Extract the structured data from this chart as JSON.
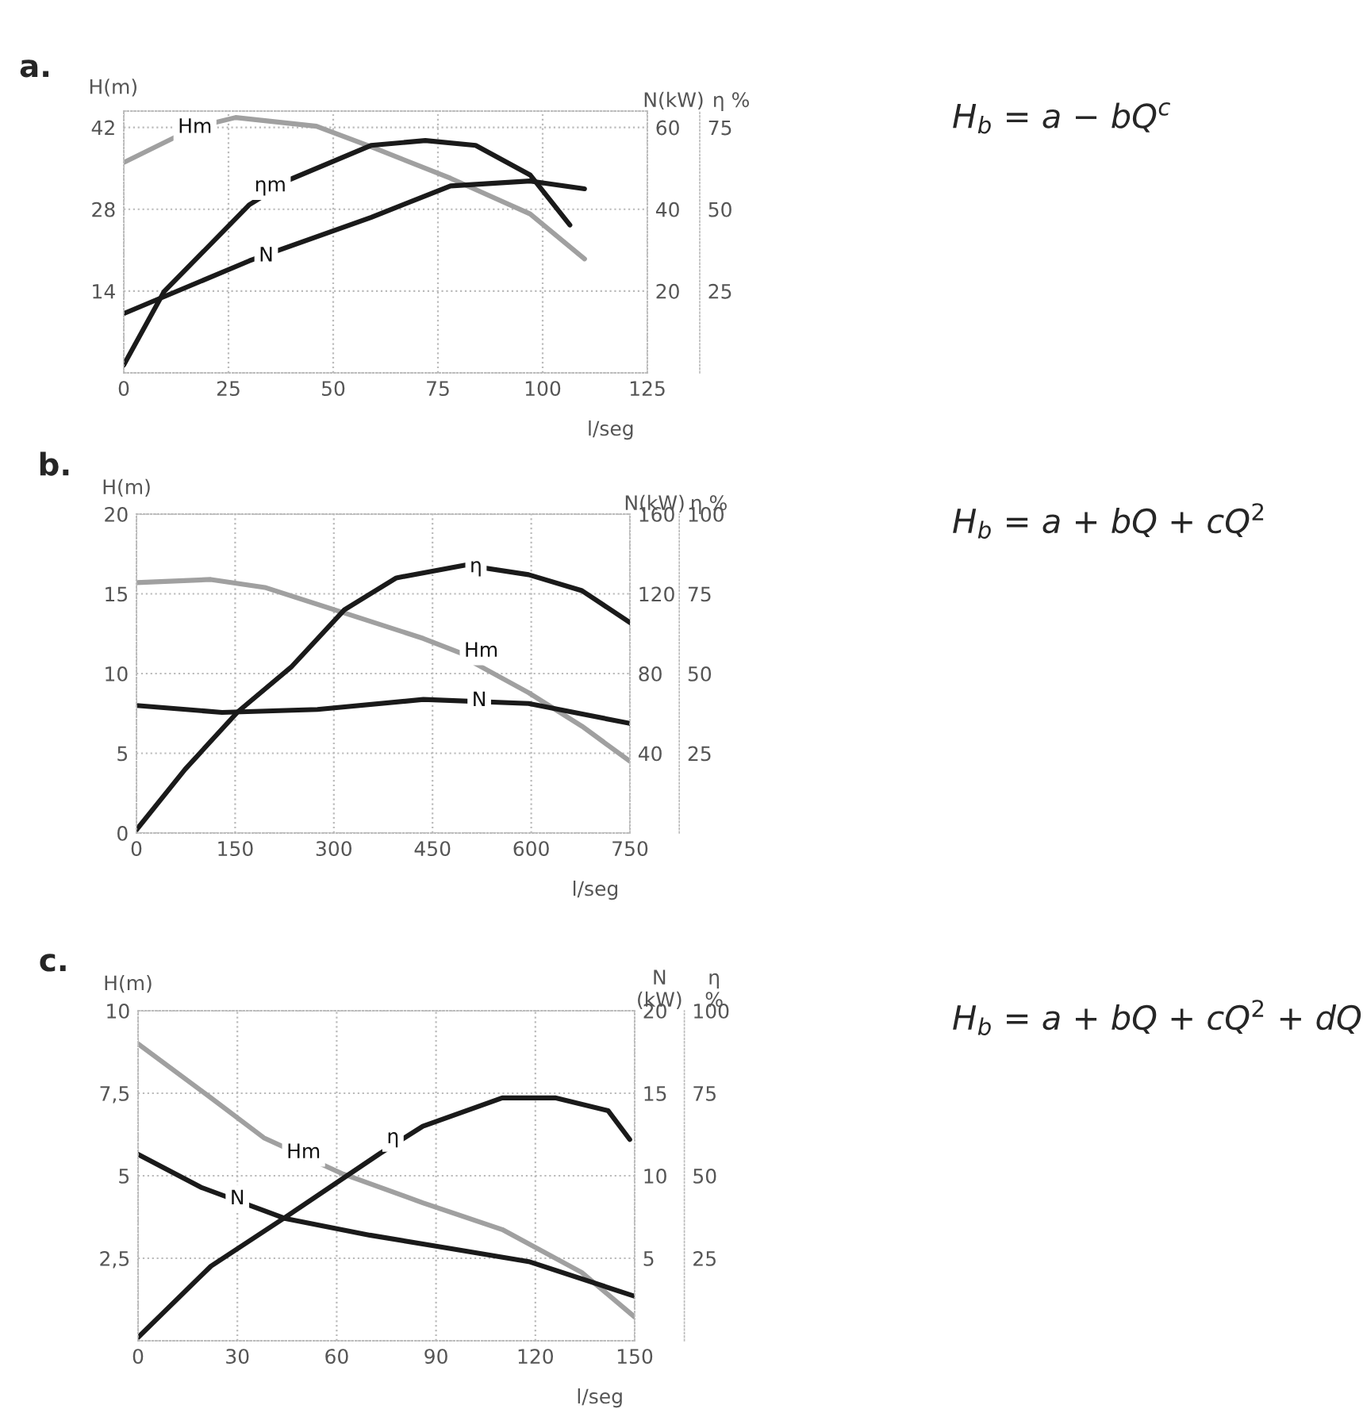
{
  "chart_data": [
    {
      "type": "line",
      "title": "a.",
      "xlabel": "l/seg",
      "ylabel": "H(m)",
      "y2label": "N(kW)",
      "y3label": "η %",
      "grid": true,
      "xlim": [
        0,
        125
      ],
      "xticks": [
        0,
        25,
        50,
        75,
        100,
        125
      ],
      "ylim": [
        0,
        44.8
      ],
      "yticks": [
        14,
        28,
        42
      ],
      "y2lim": [
        0,
        64
      ],
      "y2ticks": [
        20,
        40,
        60
      ],
      "y3lim": [
        0,
        80
      ],
      "y3ticks": [
        25,
        50,
        75
      ],
      "series": [
        {
          "color": "#a0a0a0",
          "x": [
            0,
            17,
            26.7,
            46,
            59,
            78,
            97,
            110
          ],
          "values": [
            36,
            42,
            43.7,
            42.2,
            38.7,
            33.3,
            27.2,
            19.5
          ]
        },
        {
          "color": "#1a1a1a",
          "axis": "y3",
          "x": [
            0,
            9.6,
            30,
            39.5,
            59,
            72,
            84,
            97,
            106.5
          ],
          "values": [
            2.4,
            24.8,
            51.4,
            59,
            69.5,
            71,
            69.5,
            60.5,
            45.2
          ]
        },
        {
          "color": "#1a1a1a",
          "axis": "y2",
          "x": [
            0,
            30,
            37,
            59,
            78,
            97,
            110
          ],
          "values": [
            14.5,
            27.4,
            30,
            38,
            45.7,
            46.9,
            45
          ]
        }
      ],
      "annotations": [
        {
          "text": "Hm",
          "x": 17,
          "y": 42
        },
        {
          "text": "ηm",
          "x": 35,
          "y": 32
        },
        {
          "text": "N",
          "x": 34,
          "y": 20
        },
        "H$_{b}$ = a − bQ$^{c}$"
      ]
    },
    {
      "type": "line",
      "title": "b.",
      "xlabel": "l/seg",
      "ylabel": "H(m)",
      "y2label": "N(kW)",
      "y3label": "η %",
      "grid": true,
      "xlim": [
        0,
        750
      ],
      "xticks": [
        0,
        150,
        300,
        450,
        600,
        750
      ],
      "ylim": [
        0,
        20
      ],
      "yticks": [
        0,
        5,
        10,
        15,
        20
      ],
      "y2lim": [
        0,
        160
      ],
      "y2ticks": [
        40,
        80,
        120,
        160
      ],
      "y3lim": [
        0,
        100
      ],
      "y3ticks": [
        25,
        50,
        75,
        100
      ],
      "series": [
        {
          "color": "#a0a0a0",
          "x": [
            0,
            113,
            195,
            316,
            436,
            492,
            516,
            596,
            677,
            750
          ],
          "values": [
            15.7,
            15.9,
            15.4,
            13.8,
            12.2,
            11.3,
            10.6,
            8.8,
            6.7,
            4.5
          ]
        },
        {
          "color": "#1a1a1a",
          "axis": "y3",
          "x": [
            0,
            74,
            154,
            235,
            316,
            395,
            500,
            596,
            677,
            750
          ],
          "values": [
            1,
            20,
            38,
            52,
            70,
            80,
            84,
            81,
            76,
            66
          ]
        },
        {
          "color": "#1a1a1a",
          "axis": "y2",
          "x": [
            0,
            130,
            275,
            436,
            596,
            750
          ],
          "values": [
            64,
            60.5,
            62,
            67,
            65,
            55
          ]
        }
      ],
      "annotations": [
        {
          "text": "η",
          "x": 516,
          "y": 16.7
        },
        {
          "text": "Hm",
          "x": 524,
          "y": 11.4
        },
        {
          "text": "N",
          "x": 521,
          "y": 8.3
        },
        "H$_{b}$ = a + bQ + cQ$^{2}$"
      ]
    },
    {
      "type": "line",
      "title": "c.",
      "xlabel": "l/seg",
      "ylabel": "H(m)",
      "y2label": "N\n(kW)",
      "y3label": "η\n%",
      "grid": true,
      "xlim": [
        0,
        150
      ],
      "xticks": [
        0,
        30,
        60,
        90,
        120,
        150
      ],
      "ylim": [
        0,
        10
      ],
      "yticks": [
        {
          "value": 2.5,
          "label": "2,5"
        },
        5,
        {
          "value": 7.5,
          "label": "7,5"
        },
        10
      ],
      "y2lim": [
        0,
        20
      ],
      "y2ticks": [
        5,
        10,
        15,
        20
      ],
      "y3lim": [
        0,
        100
      ],
      "y3ticks": [
        25,
        50,
        75,
        100
      ],
      "series": [
        {
          "color": "#a0a0a0",
          "x": [
            0,
            22,
            38,
            62,
            86,
            110,
            134,
            150
          ],
          "values": [
            9.0,
            7.36,
            6.15,
            5.05,
            4.18,
            3.37,
            2.07,
            0.72
          ]
        },
        {
          "color": "#1a1a1a",
          "axis": "y3",
          "x": [
            0,
            22,
            44.6,
            73,
            86,
            110,
            126,
            142,
            148.5
          ],
          "values": [
            1,
            22.6,
            37.5,
            56.7,
            65,
            73.6,
            73.6,
            69.7,
            61
          ]
        },
        {
          "color": "#1a1a1a",
          "axis": "y2",
          "x": [
            0,
            19,
            44.6,
            70,
            94,
            118,
            150
          ],
          "values": [
            11.3,
            9.3,
            7.4,
            6.4,
            5.6,
            4.8,
            2.7
          ]
        }
      ],
      "annotations": [
        {
          "text": "Hm",
          "x": 50,
          "y": 5.7
        },
        {
          "text": "η",
          "x": 77,
          "y": 6.15
        },
        {
          "text": "N",
          "x": 30,
          "y": 4.3
        },
        "H$_{b}$ = a + bQ + cQ$^{2}$ + dQ$^{3}$"
      ]
    }
  ]
}
